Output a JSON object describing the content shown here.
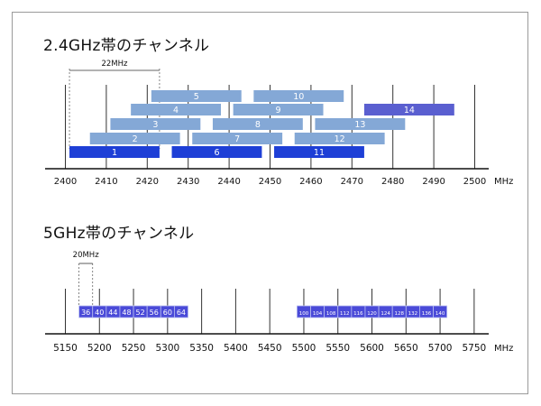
{
  "band24": {
    "title": "2.4GHz帯のチャンネル",
    "unit": "MHz",
    "width_label": "22MHz",
    "ticks": [
      2400,
      2410,
      2420,
      2430,
      2440,
      2450,
      2460,
      2470,
      2480,
      2490,
      2500
    ],
    "channels": [
      {
        "label": "1",
        "center": 2412,
        "width": 22,
        "color": "#1e3fd6"
      },
      {
        "label": "2",
        "center": 2417,
        "width": 22,
        "color": "#84a8d6"
      },
      {
        "label": "3",
        "center": 2422,
        "width": 22,
        "color": "#84a8d6"
      },
      {
        "label": "4",
        "center": 2427,
        "width": 22,
        "color": "#84a8d6"
      },
      {
        "label": "5",
        "center": 2432,
        "width": 22,
        "color": "#84a8d6"
      },
      {
        "label": "6",
        "center": 2437,
        "width": 22,
        "color": "#1e3fd6"
      },
      {
        "label": "7",
        "center": 2442,
        "width": 22,
        "color": "#84a8d6"
      },
      {
        "label": "8",
        "center": 2447,
        "width": 22,
        "color": "#84a8d6"
      },
      {
        "label": "9",
        "center": 2452,
        "width": 22,
        "color": "#84a8d6"
      },
      {
        "label": "10",
        "center": 2457,
        "width": 22,
        "color": "#84a8d6"
      },
      {
        "label": "11",
        "center": 2462,
        "width": 22,
        "color": "#1e3fd6"
      },
      {
        "label": "12",
        "center": 2467,
        "width": 22,
        "color": "#84a8d6"
      },
      {
        "label": "13",
        "center": 2472,
        "width": 22,
        "color": "#84a8d6"
      },
      {
        "label": "14",
        "center": 2484,
        "width": 22,
        "color": "#5a5fd0"
      }
    ]
  },
  "band5": {
    "title": "5GHz帯のチャンネル",
    "unit": "MHz",
    "width_label": "20MHz",
    "ticks": [
      5150,
      5200,
      5250,
      5300,
      5350,
      5400,
      5450,
      5500,
      5550,
      5600,
      5650,
      5700,
      5750
    ],
    "channel_color": "#4a4ad8",
    "groups": [
      [
        "36",
        "40",
        "44",
        "48",
        "52",
        "56",
        "60",
        "64"
      ],
      [
        "100",
        "104",
        "108",
        "112",
        "116",
        "120",
        "124",
        "128",
        "132",
        "136",
        "140"
      ]
    ]
  }
}
